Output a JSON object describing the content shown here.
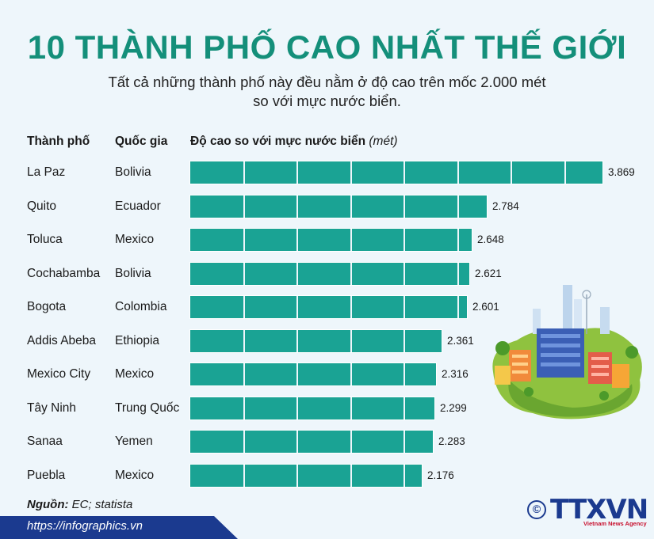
{
  "title": "10 THÀNH PHỐ CAO NHẤT THẾ GIỚI",
  "subtitle_line1": "Tất cả những thành phố này đều nằm ở độ cao trên mốc 2.000 mét",
  "subtitle_line2": "so với mực nước biển.",
  "headers": {
    "city": "Thành phố",
    "country": "Quốc gia",
    "altitude": "Độ cao so với mực nước biển",
    "unit": "(mét)"
  },
  "chart_data": {
    "type": "bar",
    "orientation": "horizontal",
    "title": "10 THÀNH PHỐ CAO NHẤT THẾ GIỚI",
    "xlabel": "Độ cao so với mực nước biển (mét)",
    "categories": [
      "La Paz",
      "Quito",
      "Toluca",
      "Cochabamba",
      "Bogota",
      "Addis Abeba",
      "Mexico City",
      "Tây Ninh",
      "Sanaa",
      "Puebla"
    ],
    "countries": [
      "Bolivia",
      "Ecuador",
      "Mexico",
      "Bolivia",
      "Colombia",
      "Ethiopia",
      "Mexico",
      "Trung Quốc",
      "Yemen",
      "Mexico"
    ],
    "values": [
      3869,
      2784,
      2648,
      2621,
      2601,
      2361,
      2316,
      2299,
      2283,
      2176
    ],
    "value_labels": [
      "3.869",
      "2.784",
      "2.648",
      "2.621",
      "2.601",
      "2.361",
      "2.316",
      "2.299",
      "2.283",
      "2.176"
    ],
    "bar_color": "#1aa394",
    "grid": true
  },
  "source_label": "Nguồn:",
  "source_text": " EC; statista",
  "url": "https://infographics.vn",
  "logo": {
    "copyright": "©",
    "name": "TTXVN",
    "tagline": "Vietnam News Agency"
  },
  "colors": {
    "title": "#148f7a",
    "bar": "#1aa394",
    "background": "#eef6fb",
    "footer": "#1b3a8f",
    "logo": "#1b3a8f"
  }
}
